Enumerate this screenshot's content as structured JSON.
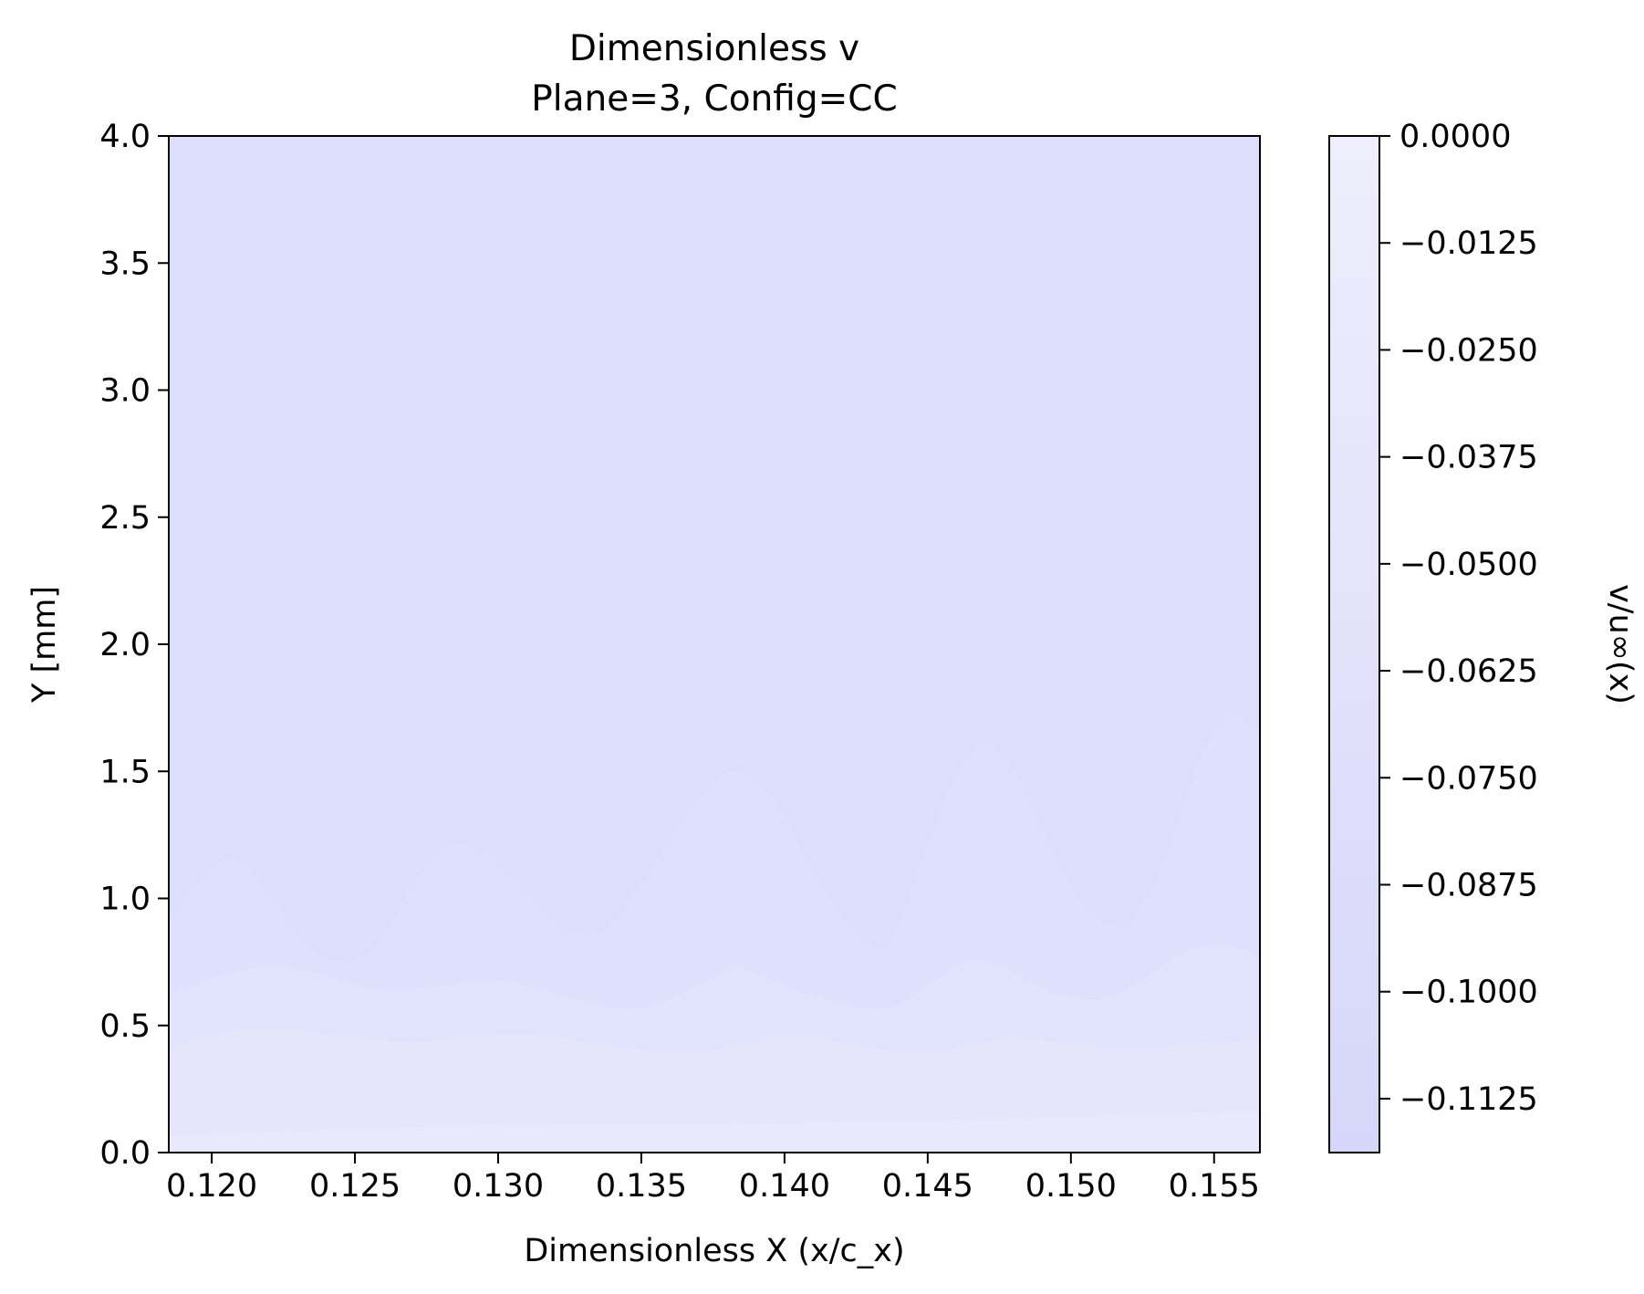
{
  "chart_data": {
    "type": "heatmap",
    "title": "Dimensionless v",
    "subtitle": "Plane=3, Config=CC",
    "xlabel": "Dimensionless X (x/c_x)",
    "ylabel": "Y [mm]",
    "xlim": [
      0.1185,
      0.1566
    ],
    "ylim": [
      0.0,
      4.0
    ],
    "x_ticks": [
      0.12,
      0.125,
      0.13,
      0.135,
      0.14,
      0.145,
      0.15,
      0.155
    ],
    "x_tick_labels": [
      "0.120",
      "0.125",
      "0.130",
      "0.135",
      "0.140",
      "0.145",
      "0.150",
      "0.155"
    ],
    "y_ticks": [
      0.0,
      0.5,
      1.0,
      1.5,
      2.0,
      2.5,
      3.0,
      3.5,
      4.0
    ],
    "y_tick_labels": [
      "0.0",
      "0.5",
      "1.0",
      "1.5",
      "2.0",
      "2.5",
      "3.0",
      "3.5",
      "4.0"
    ],
    "colorbar": {
      "label": "v/u∞(x)",
      "range": [
        -0.1188,
        0.0
      ],
      "ticks": [
        0.0,
        -0.0125,
        -0.025,
        -0.0375,
        -0.05,
        -0.0625,
        -0.075,
        -0.0875,
        -0.1,
        -0.1125
      ],
      "tick_labels": [
        "0.0000",
        "−0.0125",
        "−0.0250",
        "−0.0375",
        "−0.0500",
        "−0.0625",
        "−0.0750",
        "−0.0875",
        "−0.1000",
        "−0.1125"
      ],
      "colors": {
        "high": "#eeeefc",
        "low": "#d6d6fa"
      }
    },
    "grid": false,
    "field_colors": {
      "upper": "#dcdefc",
      "band1": "#dfe0fc",
      "band2": "#e2e3fc",
      "band3": "#e5e6fc",
      "band4": "#e8e9fd"
    }
  }
}
